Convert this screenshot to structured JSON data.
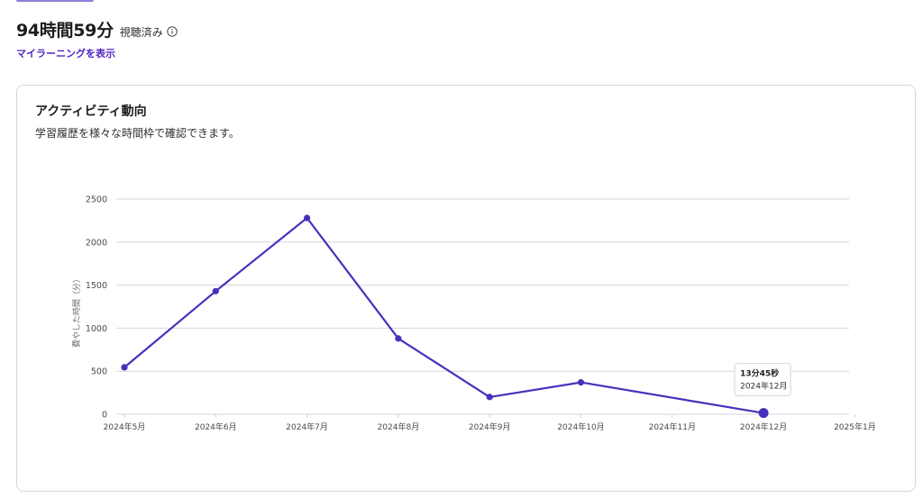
{
  "summary": {
    "total_time": "94時間59分",
    "watched_label": "視聴済み",
    "link_label": "マイラーニングを表示"
  },
  "card": {
    "title": "アクティビティ動向",
    "subtitle": "学習履歴を様々な時間枠で確認できます。"
  },
  "colors": {
    "line": "#4a2fbd",
    "link": "#5022c3",
    "grid": "#d1d7dc"
  },
  "chart_data": {
    "type": "line",
    "ylabel": "費やした時間（分）",
    "xlabel": "",
    "ylim": [
      0,
      2500
    ],
    "yticks": [
      0,
      500,
      1000,
      1500,
      2000,
      2500
    ],
    "x_ticks": [
      "2024年5月",
      "2024年6月",
      "2024年7月",
      "2024年8月",
      "2024年9月",
      "2024年10月",
      "2024年11月",
      "2024年12月",
      "2025年1月"
    ],
    "series": [
      {
        "points": [
          {
            "x": "2024年5月",
            "y": 545
          },
          {
            "x": "2024年6月",
            "y": 1430
          },
          {
            "x": "2024年7月",
            "y": 2280
          },
          {
            "x": "2024年8月",
            "y": 880
          },
          {
            "x": "2024年9月",
            "y": 200
          },
          {
            "x": "2024年10月",
            "y": 370
          },
          {
            "x": "2024年12月",
            "y": 14
          }
        ]
      }
    ],
    "tooltip": {
      "value": "13分45秒",
      "date": "2024年12月"
    },
    "grid": true
  }
}
